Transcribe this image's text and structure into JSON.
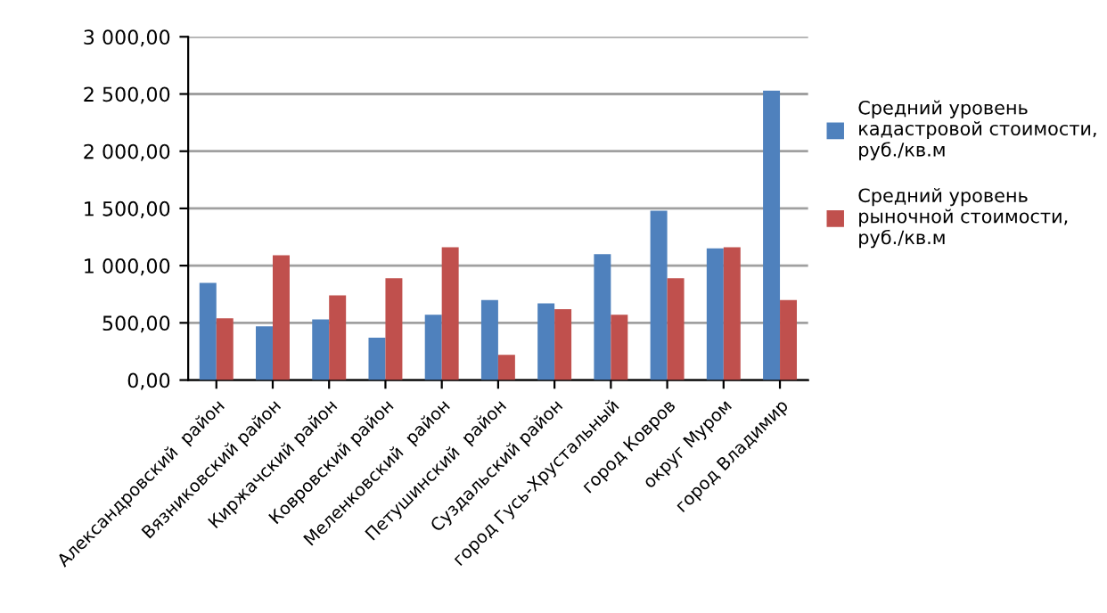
{
  "chart_data": {
    "type": "bar",
    "categories": [
      "Александровский  район",
      "Вязниковский район",
      "Киржачский район",
      "Ковровский район",
      "Меленковский  район",
      "Петушинский  район",
      "Суздальский район",
      "город Гусь-Хрустальный",
      "город Ковров",
      "округ Муром",
      "город Владимир"
    ],
    "series": [
      {
        "name": "Средний уровень кадастровой стоимости, руб./кв.м",
        "color": "#4f81bd",
        "values": [
          850,
          470,
          530,
          370,
          570,
          700,
          670,
          1100,
          1480,
          1150,
          2530
        ]
      },
      {
        "name": "Средний уровень рыночной стоимости, руб./кв.м",
        "color": "#c0504d",
        "values": [
          540,
          1090,
          740,
          890,
          1160,
          220,
          620,
          570,
          890,
          1160,
          700
        ]
      }
    ],
    "ylim": [
      0,
      3000
    ],
    "yticks": [
      {
        "value": 0,
        "label": "0,00"
      },
      {
        "value": 500,
        "label": "500,00"
      },
      {
        "value": 1000,
        "label": "1 000,00"
      },
      {
        "value": 1500,
        "label": "1 500,00"
      },
      {
        "value": 2000,
        "label": "2 000,00"
      },
      {
        "value": 2500,
        "label": "2 500,00"
      },
      {
        "value": 3000,
        "label": "3 000,00"
      }
    ],
    "grid": "y",
    "legend": "right"
  }
}
